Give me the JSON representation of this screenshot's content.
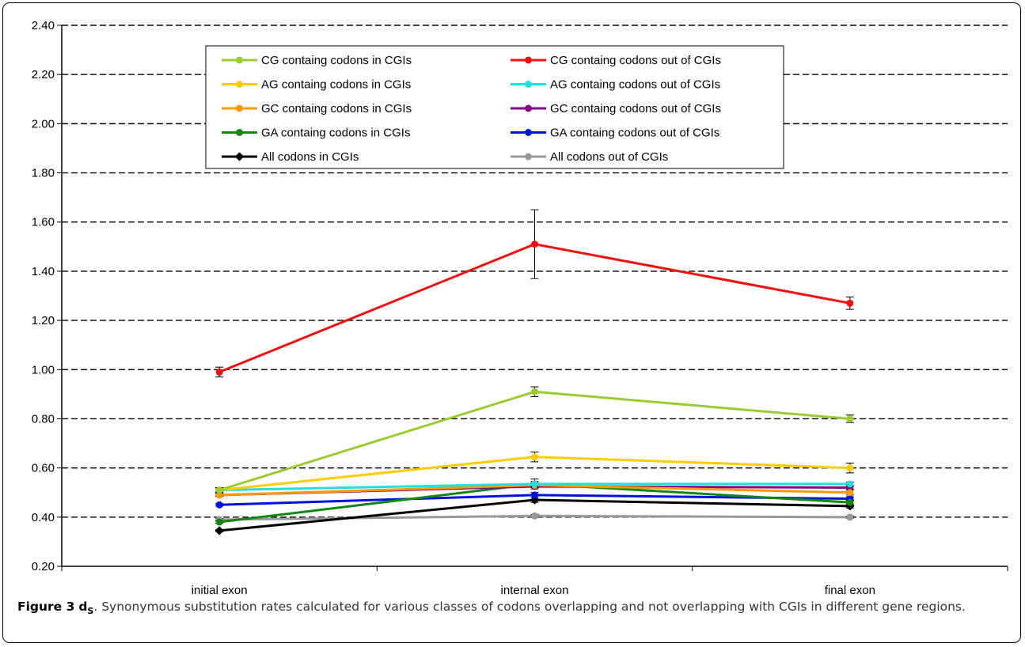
{
  "chart_data": {
    "type": "line",
    "categories": [
      "initial exon",
      "internal exon",
      "final exon"
    ],
    "ylim": [
      0.2,
      2.4
    ],
    "yticks": [
      "0.20",
      "0.40",
      "0.60",
      "0.80",
      "1.00",
      "1.20",
      "1.40",
      "1.60",
      "1.80",
      "2.00",
      "2.20",
      "2.40"
    ],
    "grid": true,
    "legend_position": "top-center",
    "series": [
      {
        "name": "CG containg codons in CGIs",
        "color": "#99cc33",
        "values": [
          0.51,
          0.91,
          0.8
        ],
        "errors": [
          0.01,
          0.02,
          0.015
        ]
      },
      {
        "name": "CG containg codons out of CGIs",
        "color": "#ee1111",
        "values": [
          0.99,
          1.51,
          1.27
        ],
        "errors": [
          0.02,
          0.14,
          0.025
        ]
      },
      {
        "name": "AG containg codons in CGIs",
        "color": "#ffcc00",
        "values": [
          0.51,
          0.645,
          0.6
        ],
        "errors": [
          0.01,
          0.02,
          0.02
        ]
      },
      {
        "name": "AG containg codons out of CGIs",
        "color": "#22e0e0",
        "values": [
          0.51,
          0.535,
          0.535
        ],
        "errors": [
          0.005,
          0.01,
          0.008
        ]
      },
      {
        "name": "GC containg codons in CGIs",
        "color": "#ff9900",
        "values": [
          0.49,
          0.53,
          0.5
        ],
        "errors": [
          0.005,
          0.01,
          0.01
        ]
      },
      {
        "name": "GC containg codons out of CGIs",
        "color": "#880088",
        "values": [
          0.49,
          0.525,
          0.52
        ],
        "errors": [
          0.005,
          0.01,
          0.008
        ]
      },
      {
        "name": "GA containg codons in CGIs",
        "color": "#118811",
        "values": [
          0.38,
          0.535,
          0.46
        ],
        "errors": [
          0.005,
          0.02,
          0.01
        ]
      },
      {
        "name": "GA containg codons out of CGIs",
        "color": "#0011dd",
        "values": [
          0.45,
          0.49,
          0.475
        ],
        "errors": [
          0.005,
          0.01,
          0.008
        ]
      },
      {
        "name": "All codons in CGIs",
        "color": "#000000",
        "values": [
          0.345,
          0.47,
          0.445
        ],
        "errors": [
          0.004,
          0.01,
          0.008
        ]
      },
      {
        "name": "All codons out of CGIs",
        "color": "#999999",
        "values": [
          0.39,
          0.405,
          0.4
        ],
        "errors": [
          0.004,
          0.006,
          0.004
        ]
      }
    ]
  },
  "caption": {
    "label": "Figure 3",
    "symbol_main": "d",
    "symbol_sub": "S",
    "text": ". Synonymous substitution rates calculated for various classes of codons overlapping and not overlapping with CGIs in different gene regions."
  }
}
